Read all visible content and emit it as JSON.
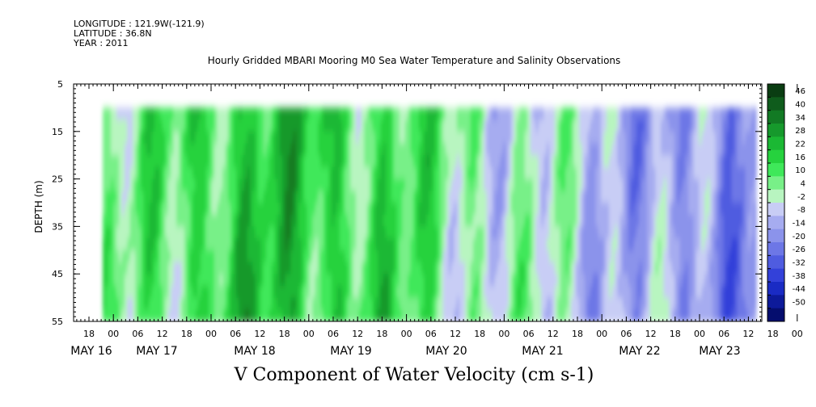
{
  "header": {
    "longitude": "LONGITUDE : 121.9W(-121.9)",
    "latitude": "LATITUDE : 36.8N",
    "year": "YEAR : 2011"
  },
  "chart_data": {
    "type": "heatmap",
    "title": "Hourly Gridded MBARI Mooring M0 Sea Water Temperature and Salinity Observations",
    "xlabel": "V Component of Water Velocity (cm s-1)",
    "ylabel": "DEPTH (m)",
    "ylim": [
      55,
      5
    ],
    "y_ticks": [
      5,
      15,
      25,
      35,
      45,
      55
    ],
    "x_hour_ticks": [
      "18",
      "00",
      "06",
      "12",
      "18",
      "00",
      "06",
      "12",
      "18",
      "00",
      "06",
      "12",
      "18",
      "00",
      "06",
      "12",
      "18",
      "00",
      "06",
      "12",
      "18",
      "00",
      "06",
      "12",
      "18",
      "00",
      "06",
      "12",
      "18",
      "00",
      "06",
      "12"
    ],
    "x_day_labels": [
      "MAY 16",
      "MAY 17",
      "MAY 18",
      "MAY 19",
      "MAY 20",
      "MAY 21",
      "MAY 22",
      "MAY 23"
    ],
    "data_depth_range": [
      10,
      55
    ],
    "colorbar": {
      "labels": [
        "46",
        "40",
        "34",
        "28",
        "22",
        "16",
        "10",
        "4",
        "-2",
        "-8",
        "-14",
        "-20",
        "-26",
        "-32",
        "-38",
        "-44",
        "-50"
      ],
      "colors": [
        "#0a3d12",
        "#0f5c1c",
        "#127a24",
        "#16992c",
        "#1bb834",
        "#26d23e",
        "#3fe85a",
        "#78f088",
        "#b8f5c0",
        "#c8cdf5",
        "#a6acf0",
        "#8b93eb",
        "#6d77e6",
        "#4f5ce0",
        "#3341d9",
        "#1a2bc4",
        "#0d1a9a",
        "#050d6e"
      ],
      "range": [
        -50,
        50
      ]
    },
    "velocity_profile_by_day": [
      {
        "day": "MAY 16",
        "v": 4
      },
      {
        "day": "MAY 17",
        "v": 18
      },
      {
        "day": "MAY 18",
        "v": 20
      },
      {
        "day": "MAY 19",
        "v": 12
      },
      {
        "day": "MAY 20",
        "v": 2
      },
      {
        "day": "MAY 21",
        "v": -4
      },
      {
        "day": "MAY 22",
        "v": -14
      },
      {
        "day": "MAY 23",
        "v": -18
      }
    ]
  }
}
